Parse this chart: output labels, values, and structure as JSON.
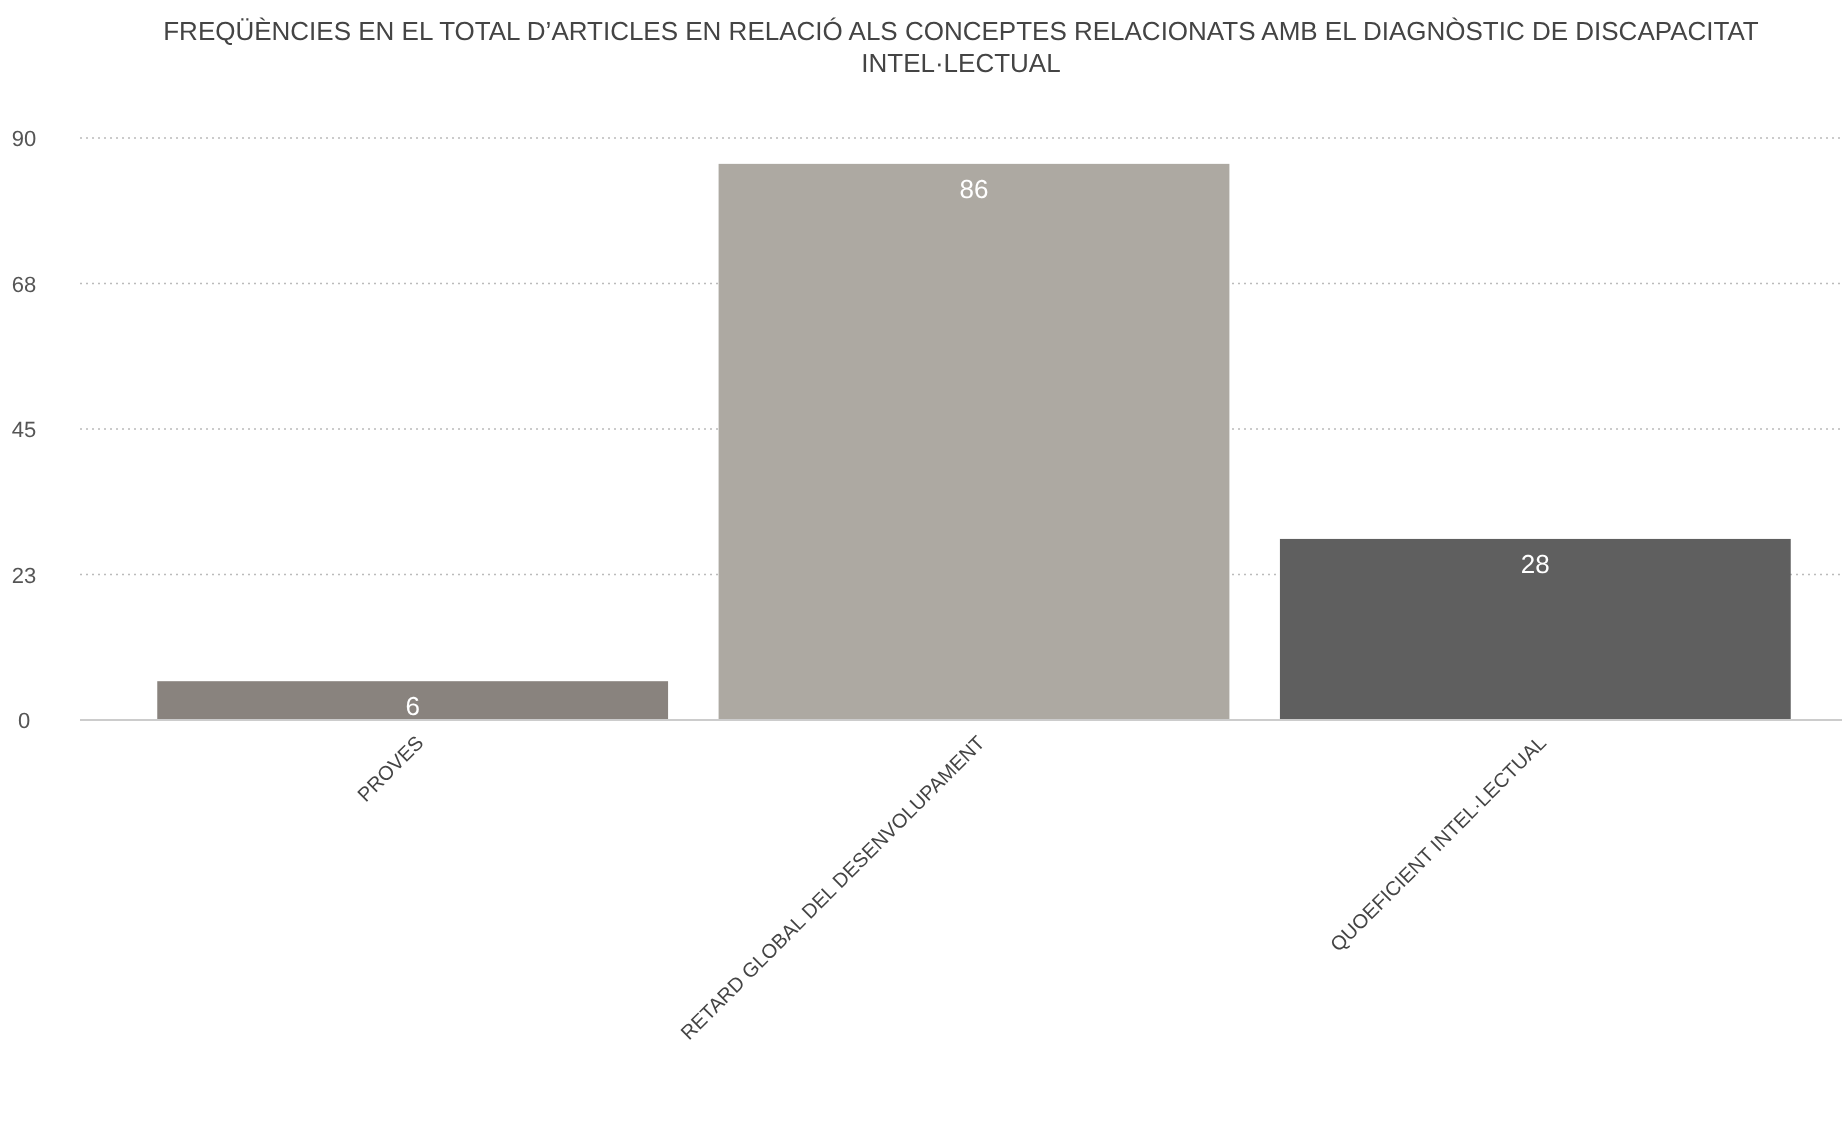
{
  "chart_data": {
    "type": "bar",
    "title": "FREQÜÈNCIES EN EL TOTAL D’ARTICLES EN RELACIÓ ALS CONCEPTES RELACIONATS AMB EL  DIAGNÒSTIC DE DISCAPACITAT INTEL·LECTUAL",
    "categories": [
      "PROVES",
      "RETARD GLOBAL DEL DESENVOLUPAMENT",
      "QUOEFICIENT INTEL·LECTUAL"
    ],
    "values": [
      6,
      86,
      28
    ],
    "colors": [
      "#89837e",
      "#ada9a2",
      "#5f5f5f"
    ],
    "ylim": [
      0,
      90
    ],
    "yticks": [
      0,
      {
        "value": 22.5,
        "label": "23"
      },
      45,
      {
        "value": 67.5,
        "label": "68"
      },
      90
    ],
    "grid": "y",
    "data_labels": true
  }
}
